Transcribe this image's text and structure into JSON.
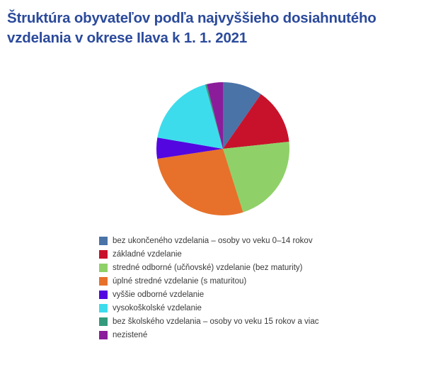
{
  "title": "Štruktúra obyvateľov podľa najvyššieho dosiahnutého vzdelania v okrese Ilava k 1. 1. 2021",
  "title_color": "#2b4a9b",
  "chart_data": {
    "type": "pie",
    "title": "Štruktúra obyvateľov podľa najvyššieho dosiahnutého vzdelania v okrese Ilava k 1. 1. 2021",
    "unit": "percent",
    "start_angle_deg": 0,
    "direction": "clockwise",
    "legend_position": "bottom",
    "slices": [
      {
        "label": "bez ukončeného vzdelania – osoby vo veku 0–14 rokov",
        "value": 9.7,
        "color": "#4a73a8"
      },
      {
        "label": "základné vzdelanie",
        "value": 13.6,
        "color": "#c8122b"
      },
      {
        "label": "stredné odborné (učňovské) vzdelanie (bez maturity)",
        "value": 21.8,
        "color": "#8fd168"
      },
      {
        "label": "úplné stredné vzdelanie (s maturitou)",
        "value": 27.5,
        "color": "#e7712b"
      },
      {
        "label": "vyššie odborné vzdelanie",
        "value": 5.1,
        "color": "#5306e0"
      },
      {
        "label": "vysokoškolské vzdelanie",
        "value": 18.0,
        "color": "#3ddcec"
      },
      {
        "label": "bez školského vzdelania – osoby vo veku 15 rokov a viac",
        "value": 0.4,
        "color": "#339a7b"
      },
      {
        "label": "nezistené",
        "value": 3.9,
        "color": "#8b1d9b"
      }
    ]
  }
}
